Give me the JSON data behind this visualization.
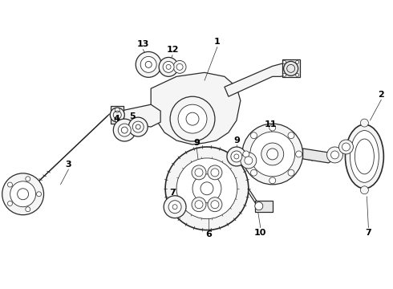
{
  "background_color": "#ffffff",
  "line_color": "#2a2a2a",
  "label_color": "#000000",
  "fig_width": 4.9,
  "fig_height": 3.6,
  "dpi": 100,
  "lw_thin": 0.6,
  "lw_med": 0.9,
  "lw_thick": 1.2,
  "fill_light": "#f5f5f5",
  "fill_mid": "#e8e8e8",
  "fill_dark": "#d0d0d0"
}
